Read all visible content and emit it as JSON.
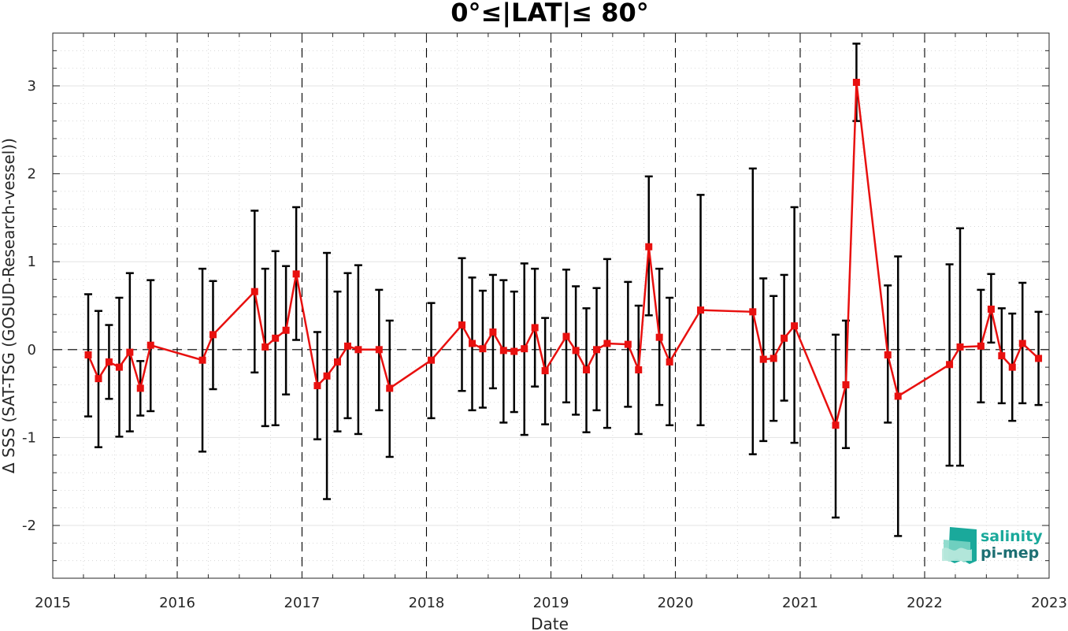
{
  "chart_data": {
    "type": "line",
    "title": "0°≤|LAT|≤ 80°",
    "xlabel": "Date",
    "ylabel": "Δ SSS (SAT-TSG (GOSUD-Research-vessel))",
    "xlim": [
      "2015-01-01",
      "2023-01-01"
    ],
    "ylim": [
      -2.6,
      3.6
    ],
    "x_ticks": [
      "2015",
      "2016",
      "2017",
      "2018",
      "2019",
      "2020",
      "2021",
      "2022",
      "2023"
    ],
    "y_ticks": [
      -2,
      -1,
      0,
      1,
      2,
      3
    ],
    "grid": true,
    "zero_line": "dashed",
    "year_lines": "dashed",
    "series": [
      {
        "color": "#e8100f",
        "marker": "square",
        "error_bar_color": "#000000",
        "points": [
          {
            "date": "2015-04-15",
            "y": -0.06,
            "low": -0.76,
            "high": 0.63
          },
          {
            "date": "2015-05-15",
            "y": -0.33,
            "low": -1.11,
            "high": 0.44
          },
          {
            "date": "2015-06-15",
            "y": -0.14,
            "low": -0.56,
            "high": 0.28
          },
          {
            "date": "2015-07-15",
            "y": -0.2,
            "low": -0.99,
            "high": 0.59
          },
          {
            "date": "2015-08-15",
            "y": -0.03,
            "low": -0.93,
            "high": 0.87
          },
          {
            "date": "2015-09-15",
            "y": -0.44,
            "low": -0.75,
            "high": -0.13
          },
          {
            "date": "2015-10-15",
            "y": 0.05,
            "low": -0.7,
            "high": 0.79
          },
          {
            "date": "2016-03-15",
            "y": -0.12,
            "low": -1.16,
            "high": 0.92
          },
          {
            "date": "2016-04-15",
            "y": 0.17,
            "low": -0.45,
            "high": 0.78
          },
          {
            "date": "2016-08-15",
            "y": 0.66,
            "low": -0.26,
            "high": 1.58
          },
          {
            "date": "2016-09-15",
            "y": 0.03,
            "low": -0.87,
            "high": 0.92
          },
          {
            "date": "2016-10-15",
            "y": 0.13,
            "low": -0.86,
            "high": 1.12
          },
          {
            "date": "2016-11-15",
            "y": 0.22,
            "low": -0.51,
            "high": 0.95
          },
          {
            "date": "2016-12-15",
            "y": 0.86,
            "low": 0.11,
            "high": 1.62
          },
          {
            "date": "2017-02-15",
            "y": -0.41,
            "low": -1.02,
            "high": 0.2
          },
          {
            "date": "2017-03-15",
            "y": -0.3,
            "low": -1.7,
            "high": 1.1
          },
          {
            "date": "2017-04-15",
            "y": -0.14,
            "low": -0.93,
            "high": 0.66
          },
          {
            "date": "2017-05-15",
            "y": 0.04,
            "low": -0.78,
            "high": 0.87
          },
          {
            "date": "2017-06-15",
            "y": 0.0,
            "low": -0.96,
            "high": 0.96
          },
          {
            "date": "2017-08-15",
            "y": 0.0,
            "low": -0.69,
            "high": 0.68
          },
          {
            "date": "2017-09-15",
            "y": -0.44,
            "low": -1.22,
            "high": 0.33
          },
          {
            "date": "2018-01-15",
            "y": -0.12,
            "low": -0.78,
            "high": 0.53
          },
          {
            "date": "2018-04-15",
            "y": 0.28,
            "low": -0.47,
            "high": 1.04
          },
          {
            "date": "2018-05-15",
            "y": 0.07,
            "low": -0.69,
            "high": 0.82
          },
          {
            "date": "2018-06-15",
            "y": 0.01,
            "low": -0.66,
            "high": 0.67
          },
          {
            "date": "2018-07-15",
            "y": 0.2,
            "low": -0.44,
            "high": 0.85
          },
          {
            "date": "2018-08-15",
            "y": -0.01,
            "low": -0.83,
            "high": 0.79
          },
          {
            "date": "2018-09-15",
            "y": -0.02,
            "low": -0.71,
            "high": 0.66
          },
          {
            "date": "2018-10-15",
            "y": 0.01,
            "low": -0.97,
            "high": 0.98
          },
          {
            "date": "2018-11-15",
            "y": 0.25,
            "low": -0.42,
            "high": 0.92
          },
          {
            "date": "2018-12-15",
            "y": -0.24,
            "low": -0.85,
            "high": 0.36
          },
          {
            "date": "2019-02-15",
            "y": 0.15,
            "low": -0.6,
            "high": 0.91
          },
          {
            "date": "2019-03-15",
            "y": -0.01,
            "low": -0.74,
            "high": 0.72
          },
          {
            "date": "2019-04-15",
            "y": -0.23,
            "low": -0.94,
            "high": 0.47
          },
          {
            "date": "2019-05-15",
            "y": 0.0,
            "low": -0.69,
            "high": 0.7
          },
          {
            "date": "2019-06-15",
            "y": 0.07,
            "low": -0.89,
            "high": 1.03
          },
          {
            "date": "2019-08-15",
            "y": 0.06,
            "low": -0.65,
            "high": 0.77
          },
          {
            "date": "2019-09-15",
            "y": -0.23,
            "low": -0.96,
            "high": 0.5
          },
          {
            "date": "2019-10-15",
            "y": 1.17,
            "low": 0.39,
            "high": 1.97
          },
          {
            "date": "2019-11-15",
            "y": 0.14,
            "low": -0.63,
            "high": 0.92
          },
          {
            "date": "2019-12-15",
            "y": -0.14,
            "low": -0.86,
            "high": 0.59
          },
          {
            "date": "2020-03-15",
            "y": 0.45,
            "low": -0.86,
            "high": 1.76
          },
          {
            "date": "2020-08-15",
            "y": 0.43,
            "low": -1.19,
            "high": 2.06
          },
          {
            "date": "2020-09-15",
            "y": -0.11,
            "low": -1.04,
            "high": 0.81
          },
          {
            "date": "2020-10-15",
            "y": -0.1,
            "low": -0.81,
            "high": 0.61
          },
          {
            "date": "2020-11-15",
            "y": 0.13,
            "low": -0.58,
            "high": 0.85
          },
          {
            "date": "2020-12-15",
            "y": 0.27,
            "low": -1.06,
            "high": 1.62
          },
          {
            "date": "2021-04-15",
            "y": -0.86,
            "low": -1.91,
            "high": 0.17
          },
          {
            "date": "2021-05-15",
            "y": -0.4,
            "low": -1.12,
            "high": 0.33
          },
          {
            "date": "2021-06-15",
            "y": 3.04,
            "low": 2.6,
            "high": 3.48
          },
          {
            "date": "2021-09-15",
            "y": -0.06,
            "low": -0.83,
            "high": 0.73
          },
          {
            "date": "2021-10-15",
            "y": -0.53,
            "low": -2.12,
            "high": 1.06
          },
          {
            "date": "2022-03-15",
            "y": -0.17,
            "low": -1.32,
            "high": 0.97
          },
          {
            "date": "2022-04-15",
            "y": 0.03,
            "low": -1.32,
            "high": 1.38
          },
          {
            "date": "2022-06-15",
            "y": 0.04,
            "low": -0.6,
            "high": 0.68
          },
          {
            "date": "2022-07-15",
            "y": 0.46,
            "low": 0.08,
            "high": 0.86
          },
          {
            "date": "2022-08-15",
            "y": -0.07,
            "low": -0.61,
            "high": 0.47
          },
          {
            "date": "2022-09-15",
            "y": -0.2,
            "low": -0.81,
            "high": 0.41
          },
          {
            "date": "2022-10-15",
            "y": 0.07,
            "low": -0.61,
            "high": 0.76
          },
          {
            "date": "2022-12-01",
            "y": -0.1,
            "low": -0.63,
            "high": 0.43
          }
        ]
      }
    ]
  },
  "logo": {
    "line1": "salinity",
    "line2": "pi-mep",
    "color1": "#1aa99b",
    "color2": "#1d6f73"
  }
}
